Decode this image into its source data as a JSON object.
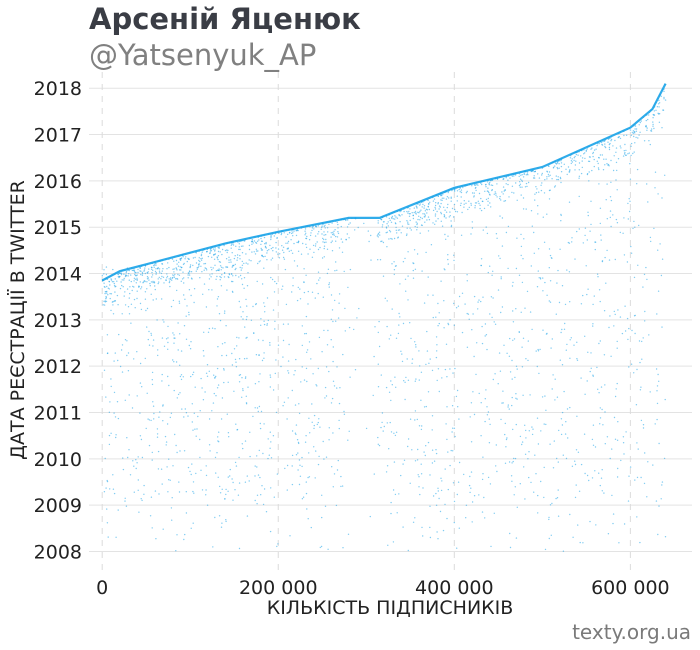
{
  "header": {
    "title": "Арсеній Яценюк",
    "subtitle": "@Yatsenyuk_AP"
  },
  "footer": {
    "source": "texty.org.ua"
  },
  "chart_data": {
    "type": "scatter",
    "xlabel": "КІЛЬКІСТЬ ПІДПИСНИКІВ",
    "ylabel": "ДАТА РЕЄСТРАЦІЇ В TWITTER",
    "xlim": [
      -15000,
      670000
    ],
    "ylim": [
      2007.6,
      2018.35
    ],
    "x_ticks": [
      {
        "value": 0,
        "label": "0"
      },
      {
        "value": 200000,
        "label": "200 000"
      },
      {
        "value": 400000,
        "label": "400 000"
      },
      {
        "value": 600000,
        "label": "600 000"
      }
    ],
    "y_ticks": [
      {
        "value": 2008,
        "label": "2008"
      },
      {
        "value": 2009,
        "label": "2009"
      },
      {
        "value": 2010,
        "label": "2010"
      },
      {
        "value": 2011,
        "label": "2011"
      },
      {
        "value": 2012,
        "label": "2012"
      },
      {
        "value": 2013,
        "label": "2013"
      },
      {
        "value": 2014,
        "label": "2014"
      },
      {
        "value": 2015,
        "label": "2015"
      },
      {
        "value": 2016,
        "label": "2016"
      },
      {
        "value": 2017,
        "label": "2017"
      },
      {
        "value": 2018,
        "label": "2018"
      }
    ],
    "grid": true,
    "point_color": "#1aa3e8",
    "upper_frontier": [
      [
        0,
        2013.85
      ],
      [
        20000,
        2014.05
      ],
      [
        50000,
        2014.2
      ],
      [
        100000,
        2014.45
      ],
      [
        140000,
        2014.65
      ],
      [
        200000,
        2014.9
      ],
      [
        280000,
        2015.2
      ],
      [
        315000,
        2015.2
      ],
      [
        400000,
        2015.85
      ],
      [
        500000,
        2016.3
      ],
      [
        600000,
        2017.15
      ],
      [
        625000,
        2017.55
      ],
      [
        640000,
        2018.1
      ]
    ]
  }
}
